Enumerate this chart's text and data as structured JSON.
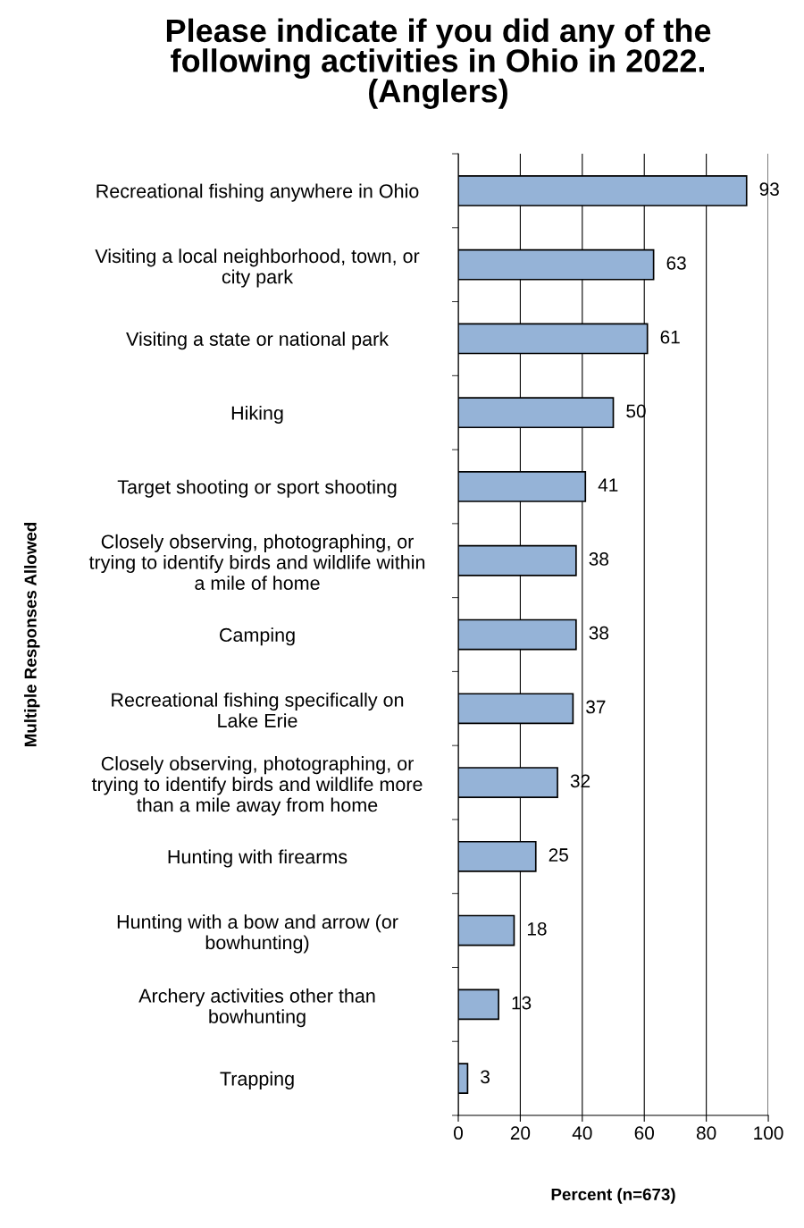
{
  "chart_data": {
    "type": "bar",
    "orientation": "horizontal",
    "title": "Please indicate if you did any of the\nfollowing activities in Ohio in 2022.\n(Anglers)",
    "xlabel": "Percent (n=673)",
    "ylabel": "Multiple Responses Allowed",
    "categories": [
      "Recreational fishing anywhere in Ohio",
      "Visiting a local neighborhood, town, or\ncity park",
      "Visiting a state or national park",
      "Hiking",
      "Target shooting or sport shooting",
      "Closely observing, photographing, or\ntrying to identify birds and wildlife within\na mile of home",
      "Camping",
      "Recreational fishing specifically on\nLake Erie",
      "Closely observing, photographing, or\ntrying to identify birds and wildlife more\nthan a mile away from home",
      "Hunting with firearms",
      "Hunting with a bow and arrow (or\nbowhunting)",
      "Archery activities other than\nbowhunting",
      "Trapping"
    ],
    "values": [
      93,
      63,
      61,
      50,
      41,
      38,
      38,
      37,
      32,
      25,
      18,
      13,
      3
    ],
    "color": "#95b3d7",
    "xlim": [
      0,
      100
    ],
    "xticks": [
      0,
      20,
      40,
      60,
      80,
      100
    ],
    "grid": "x",
    "data_labels": true
  }
}
